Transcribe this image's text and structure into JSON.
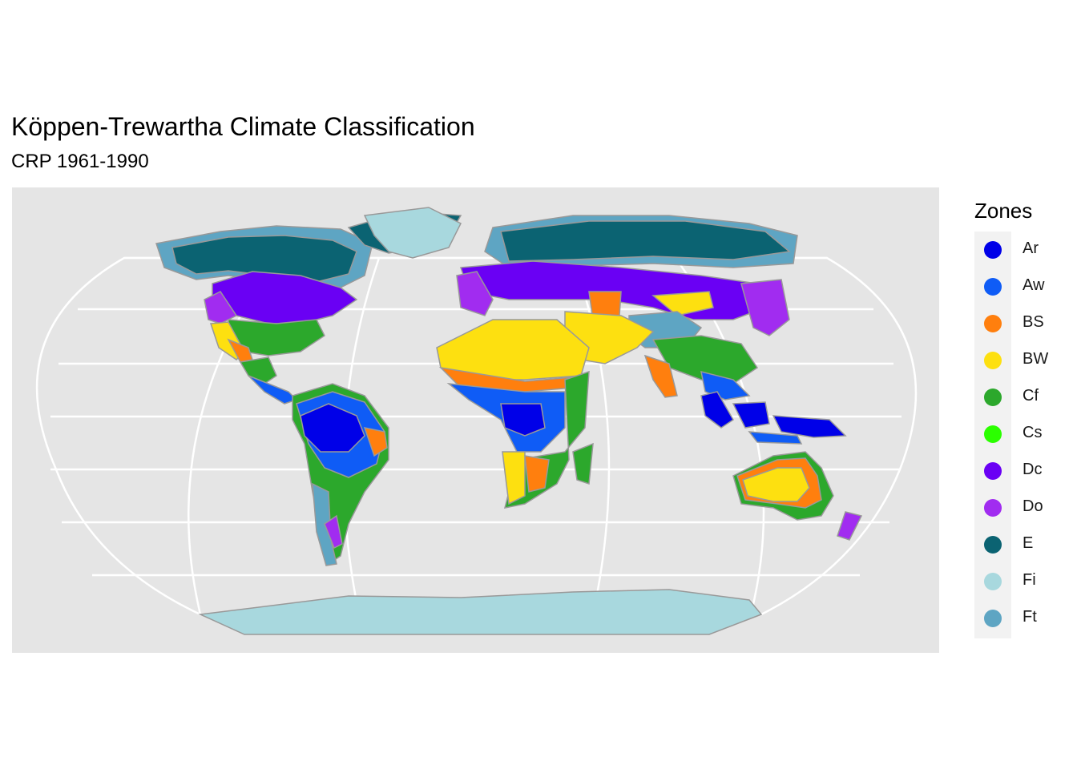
{
  "title": "Köppen-Trewartha Climate Classification",
  "subtitle": "CRP 1961-1990",
  "legend": {
    "title": "Zones",
    "items": [
      {
        "label": "Ar",
        "color": "#0000e8"
      },
      {
        "label": "Aw",
        "color": "#0f5cf6"
      },
      {
        "label": "BS",
        "color": "#ff7f0e"
      },
      {
        "label": "BW",
        "color": "#fde010"
      },
      {
        "label": "Cf",
        "color": "#2ca82c"
      },
      {
        "label": "Cs",
        "color": "#2bff00"
      },
      {
        "label": "Dc",
        "color": "#6a00f4"
      },
      {
        "label": "Do",
        "color": "#a12cf0"
      },
      {
        "label": "E",
        "color": "#0b6372"
      },
      {
        "label": "Fi",
        "color": "#a8d8de"
      },
      {
        "label": "Ft",
        "color": "#5ea5c3"
      }
    ]
  },
  "colors": {
    "panel": "#e5e5e5",
    "graticule": "#ffffff",
    "coastline": "#999999"
  },
  "projection": "Robinson-like"
}
